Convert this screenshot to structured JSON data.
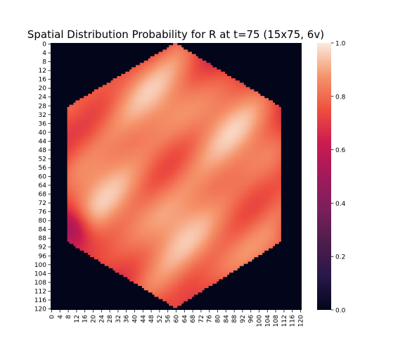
{
  "chart_data": {
    "type": "heatmap",
    "title": "Spatial Distribution Probability for R at t=75 (15x75, 6v)",
    "xlabel": "",
    "ylabel": "",
    "x_tick_labels": [
      "0",
      "4",
      "8",
      "12",
      "16",
      "20",
      "24",
      "28",
      "32",
      "36",
      "40",
      "44",
      "48",
      "52",
      "56",
      "60",
      "64",
      "68",
      "72",
      "76",
      "80",
      "84",
      "88",
      "92",
      "96",
      "100",
      "104",
      "108",
      "112",
      "116",
      "120"
    ],
    "y_tick_labels": [
      "0",
      "4",
      "8",
      "12",
      "16",
      "20",
      "24",
      "28",
      "32",
      "36",
      "40",
      "44",
      "48",
      "52",
      "56",
      "60",
      "64",
      "68",
      "72",
      "76",
      "80",
      "84",
      "88",
      "92",
      "96",
      "100",
      "104",
      "108",
      "112",
      "116",
      "120"
    ],
    "grid_size": 121,
    "region_shape": "hexagon",
    "hexagon_vertices": [
      [
        60,
        0
      ],
      [
        111,
        29
      ],
      [
        111,
        90
      ],
      [
        60,
        120
      ],
      [
        8,
        90
      ],
      [
        8,
        29
      ]
    ],
    "outside_value": 0.0,
    "inside_base_value": 0.85,
    "low_region": {
      "x": 10,
      "y": 85,
      "value": 0.55
    },
    "colorbar": {
      "min": 0.0,
      "max": 1.0,
      "ticks": [
        "0.0",
        "0.2",
        "0.4",
        "0.6",
        "0.8",
        "1.0"
      ],
      "colormap": "rocket"
    },
    "grid": false
  }
}
